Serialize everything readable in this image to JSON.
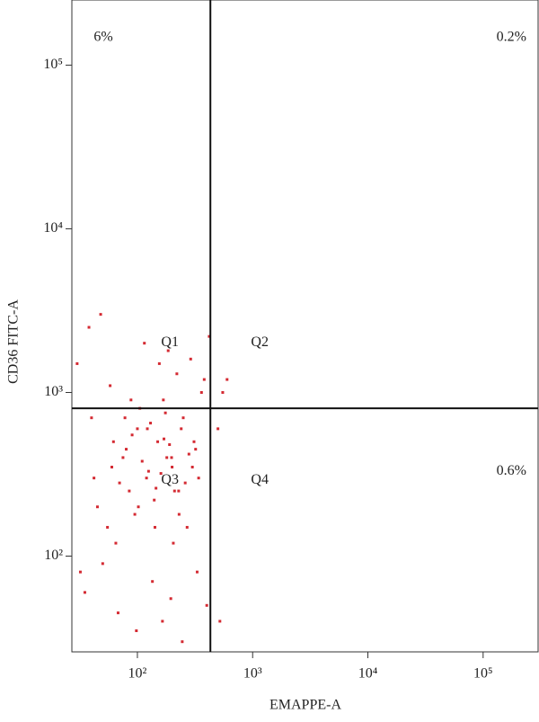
{
  "chart_data": {
    "type": "scatter",
    "x_label": "EMAPPE-A",
    "y_label": "CD36 FITC-A",
    "xlog": true,
    "ylog": true,
    "xlim": [
      27,
      300000
    ],
    "ylim": [
      26,
      250000
    ],
    "xticks": [
      {
        "value": 100,
        "label": "10²"
      },
      {
        "value": 1000,
        "label": "10³"
      },
      {
        "value": 10000,
        "label": "10⁴"
      },
      {
        "value": 100000,
        "label": "10⁵"
      }
    ],
    "yticks": [
      {
        "value": 100,
        "label": "10²"
      },
      {
        "value": 1000,
        "label": "10³"
      },
      {
        "value": 10000,
        "label": "10⁴"
      },
      {
        "value": 100000,
        "label": "10⁵"
      }
    ],
    "color": "#d42a32",
    "x": [
      45,
      60,
      80,
      100,
      120,
      150,
      180,
      210,
      250,
      300,
      55,
      70,
      90,
      110,
      130,
      160,
      190,
      230,
      280,
      340,
      40,
      65,
      85,
      105,
      140,
      170,
      200,
      240,
      270,
      320,
      50,
      75,
      95,
      125,
      145,
      175,
      205,
      260,
      310,
      380,
      35,
      58,
      88,
      115,
      155,
      185,
      220,
      290,
      360,
      420,
      48,
      68,
      98,
      135,
      165,
      195,
      245,
      330,
      400,
      520,
      30,
      42,
      62,
      78,
      102,
      122,
      142,
      168,
      198,
      228,
      500,
      550,
      600,
      32,
      38
    ],
    "values": [
      200,
      350,
      450,
      600,
      300,
      500,
      400,
      250,
      700,
      350,
      150,
      280,
      550,
      380,
      650,
      320,
      480,
      180,
      420,
      300,
      700,
      120,
      250,
      800,
      220,
      520,
      350,
      600,
      150,
      450,
      90,
      400,
      180,
      330,
      260,
      750,
      120,
      280,
      500,
      1200,
      60,
      1100,
      900,
      2000,
      1500,
      1800,
      1300,
      1600,
      1000,
      2200,
      3000,
      45,
      35,
      70,
      40,
      55,
      30,
      80,
      50,
      40,
      1500,
      300,
      500,
      700,
      200,
      600,
      150,
      900,
      400,
      250,
      600,
      1000,
      1200,
      80,
      2500
    ],
    "gates": {
      "x": 430,
      "y": 800
    },
    "quadrants": {
      "labels": [
        "Q1",
        "Q2",
        "Q3",
        "Q4"
      ],
      "values": [
        6,
        0.2,
        null,
        0.6
      ],
      "value_labels": [
        "6%",
        "0.2%",
        null,
        "0.6%"
      ]
    }
  }
}
